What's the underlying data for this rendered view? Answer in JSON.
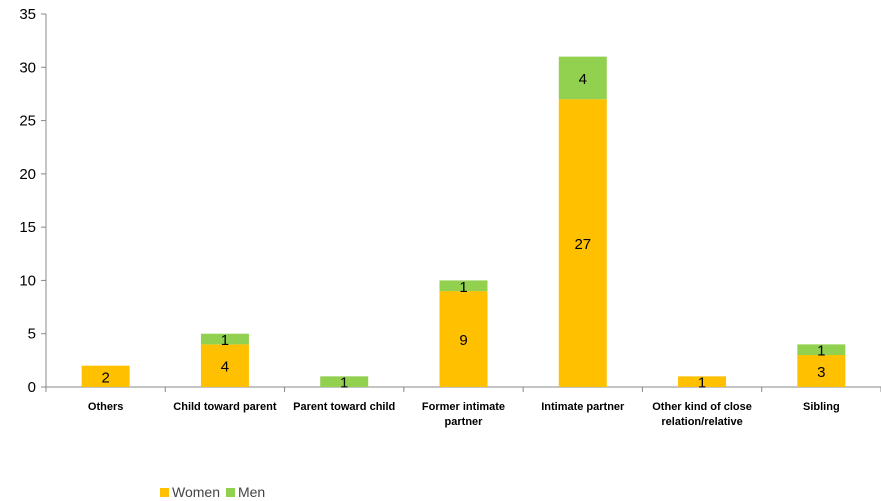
{
  "chart_data": {
    "type": "bar",
    "stacked": true,
    "categories": [
      "Others",
      "Child toward parent",
      "Parent toward child",
      "Former intimate partner",
      "Intimate partner",
      "Other kind of close relation/relative",
      "Sibling"
    ],
    "series": [
      {
        "name": "Women",
        "color": "#ffc000",
        "values": [
          2,
          4,
          0,
          9,
          27,
          1,
          3
        ]
      },
      {
        "name": "Men",
        "color": "#92d050",
        "values": [
          0,
          1,
          1,
          1,
          4,
          0,
          1
        ]
      }
    ],
    "ylim": [
      0,
      35
    ],
    "yticks": [
      0,
      5,
      10,
      15,
      20,
      25,
      30,
      35
    ],
    "xlabel": "",
    "ylabel": "",
    "grid": false,
    "legend_position": "bottom-left"
  }
}
